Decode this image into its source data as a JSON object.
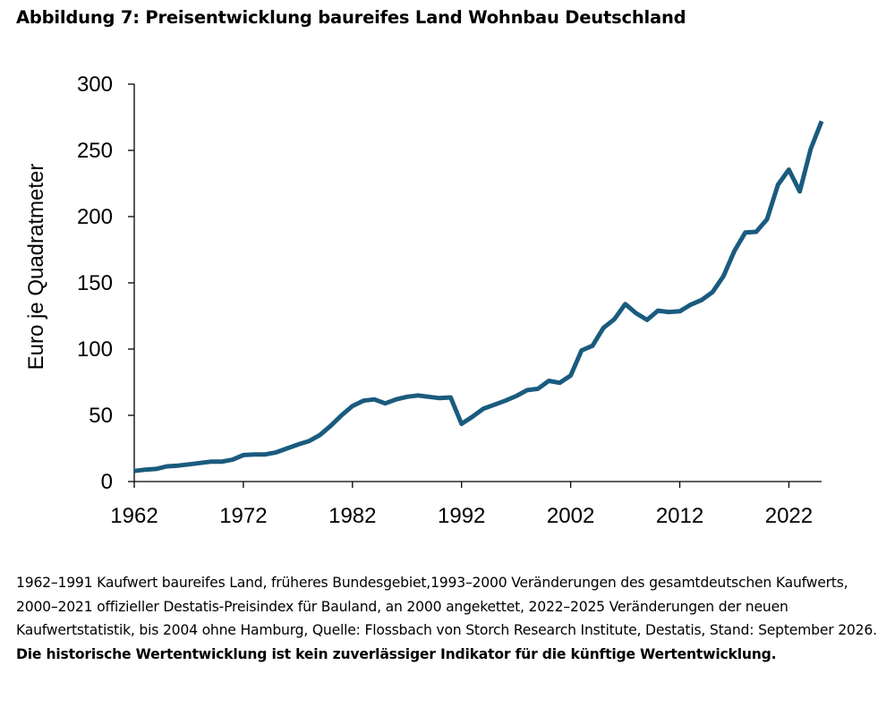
{
  "title": "Abbildung 7: Preisentwicklung baureifes Land Wohnbau Deutschland",
  "footnote": {
    "text": "1962–1991 Kaufwert baureifes Land, früheres Bundesgebiet,1993–2000 Veränderungen des gesamtdeutschen Kaufwerts, 2000–2021 offizieller Destatis-Preisindex für Bauland, an 2000 angekettet, 2022–2025 Veränderungen der neuen Kaufwertstatistik, bis 2004 ohne Hamburg, Quelle: Flossbach von Storch Research Institute, Destatis, Stand: September 2026.",
    "disclaimer": "Die historische Wertentwicklung ist kein zuverlässiger Indikator für die künftige Wert­entwicklung."
  },
  "colors": {
    "line": "#1a5b7e",
    "axis": "#000000"
  },
  "chart_data": {
    "type": "line",
    "title": "",
    "xlabel": "",
    "ylabel": "Euro je Quadratmeter",
    "xlim": [
      1962,
      2025
    ],
    "ylim": [
      0,
      300
    ],
    "xticks": [
      1962,
      1972,
      1982,
      1992,
      2002,
      2012,
      2022
    ],
    "yticks": [
      0,
      50,
      100,
      150,
      200,
      250,
      300
    ],
    "grid": false,
    "legend": "none",
    "series": [
      {
        "x": [
          1962,
          1963,
          1964,
          1965,
          1966,
          1967,
          1968,
          1969,
          1970,
          1971,
          1972,
          1973,
          1974,
          1975,
          1976,
          1977,
          1978,
          1979,
          1980,
          1981,
          1982,
          1983,
          1984,
          1985,
          1986,
          1987,
          1988,
          1989,
          1990,
          1991,
          1992,
          1993,
          1994,
          1995,
          1996,
          1997,
          1998,
          1999,
          2000,
          2001,
          2002,
          2003,
          2004,
          2005,
          2006,
          2007,
          2008,
          2009,
          2010,
          2011,
          2012,
          2013,
          2014,
          2015,
          2016,
          2017,
          2018,
          2019,
          2020,
          2021,
          2022,
          2023,
          2024,
          2025
        ],
        "values": [
          8,
          9,
          9.5,
          11.5,
          12,
          13,
          14,
          15,
          15,
          16.5,
          20,
          20.5,
          20.5,
          22,
          25,
          28,
          30.5,
          35,
          42,
          50,
          57,
          61,
          62,
          59,
          62,
          64,
          65,
          64,
          63,
          63.5,
          43.5,
          49,
          55,
          58,
          61,
          64.5,
          69,
          70,
          76,
          74.5,
          80,
          99,
          102.5,
          116,
          122.5,
          134,
          127,
          122,
          129,
          128,
          128.5,
          133.5,
          137,
          143,
          155,
          174,
          188,
          188.5,
          198,
          224,
          235.5,
          219,
          251,
          272
        ]
      }
    ]
  }
}
